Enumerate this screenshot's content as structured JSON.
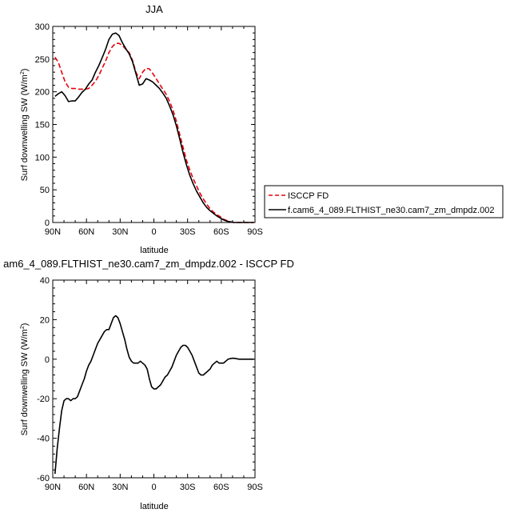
{
  "chart_data": [
    {
      "type": "line",
      "title": "JJA",
      "xlabel": "latitude",
      "ylabel": "Surf downwelling SW (W/m²)",
      "ylabel_parts": {
        "main": "Surf downwelling SW (W/m",
        "sup": "2",
        "end": ")"
      },
      "xlim": [
        90,
        -90
      ],
      "ylim": [
        0,
        300
      ],
      "x_ticks": [
        90,
        60,
        30,
        0,
        -30,
        -60,
        -90
      ],
      "x_tick_labels": [
        "90N",
        "60N",
        "30N",
        "0",
        "30S",
        "60S",
        "90S"
      ],
      "y_ticks": [
        0,
        50,
        100,
        150,
        200,
        250,
        300
      ],
      "y_tick_labels": [
        "0",
        "50",
        "100",
        "150",
        "200",
        "250",
        "300"
      ],
      "legend": "right",
      "series": [
        {
          "name": "ISCCP FD",
          "color": "#e8000b",
          "dash": "dashed",
          "x": [
            88,
            85,
            82,
            79,
            76,
            73,
            70,
            67,
            64,
            61,
            58,
            55,
            52,
            49,
            46,
            43,
            40,
            37,
            34,
            31,
            28,
            25,
            22,
            19,
            16,
            13,
            10,
            7,
            4,
            1,
            -2,
            -5,
            -8,
            -11,
            -14,
            -17,
            -20,
            -23,
            -26,
            -29,
            -32,
            -35,
            -38,
            -41,
            -44,
            -47,
            -50,
            -53,
            -56,
            -59,
            -62,
            -65,
            -68,
            -71,
            -74,
            -77,
            -80,
            -83,
            -86,
            -89
          ],
          "y": [
            253,
            245,
            230,
            215,
            207,
            205,
            205,
            204,
            204,
            204,
            205,
            210,
            216,
            225,
            236,
            247,
            260,
            269,
            274,
            274,
            271,
            265,
            260,
            248,
            230,
            220,
            230,
            236,
            235,
            228,
            220,
            212,
            204,
            196,
            185,
            172,
            155,
            135,
            115,
            95,
            80,
            67,
            56,
            45,
            36,
            28,
            21,
            16,
            12,
            9,
            5,
            3,
            1,
            0,
            0,
            0,
            0,
            0,
            0,
            0
          ]
        },
        {
          "name": "f.cam6_4_089.FLTHIST_ne30.cam7_zm_dmpdz.002",
          "color": "#000000",
          "dash": "solid",
          "x": [
            88,
            85,
            82,
            79,
            76,
            73,
            70,
            67,
            64,
            61,
            58,
            55,
            52,
            49,
            46,
            43,
            40,
            37,
            34,
            31,
            28,
            25,
            22,
            19,
            16,
            13,
            10,
            7,
            4,
            1,
            -2,
            -5,
            -8,
            -11,
            -14,
            -17,
            -20,
            -23,
            -26,
            -29,
            -32,
            -35,
            -38,
            -41,
            -44,
            -47,
            -50,
            -53,
            -56,
            -59,
            -62,
            -65,
            -68,
            -71,
            -74,
            -77,
            -80,
            -83,
            -86,
            -89
          ],
          "y": [
            193,
            197,
            200,
            194,
            185,
            186,
            186,
            192,
            199,
            204,
            212,
            218,
            230,
            240,
            252,
            265,
            280,
            288,
            290,
            286,
            275,
            266,
            258,
            246,
            228,
            210,
            212,
            220,
            218,
            215,
            210,
            205,
            198,
            190,
            178,
            165,
            148,
            128,
            107,
            88,
            72,
            59,
            48,
            39,
            30,
            23,
            18,
            14,
            10,
            7,
            4,
            2,
            1,
            0,
            0,
            0,
            0,
            0,
            0,
            0
          ]
        }
      ]
    },
    {
      "type": "line",
      "title": "am6_4_089.FLTHIST_ne30.cam7_zm_dmpdz.002 - ISCCP FD",
      "xlabel": "latitude",
      "ylabel": "Surf downwelling SW (W/m²)",
      "ylabel_parts": {
        "main": "Surf downwelling SW (W/m",
        "sup": "2",
        "end": ")"
      },
      "xlim": [
        90,
        -90
      ],
      "ylim": [
        -60,
        40
      ],
      "x_ticks": [
        90,
        60,
        30,
        0,
        -30,
        -60,
        -90
      ],
      "x_tick_labels": [
        "90N",
        "60N",
        "30N",
        "0",
        "30S",
        "60S",
        "90S"
      ],
      "y_ticks": [
        -60,
        -40,
        -20,
        0,
        20,
        40
      ],
      "y_tick_labels": [
        "-60",
        "-40",
        "-20",
        "0",
        "20",
        "40"
      ],
      "series": [
        {
          "color": "#000000",
          "dash": "solid",
          "x": [
            88,
            86,
            84,
            82,
            80,
            78,
            76,
            74,
            72,
            70,
            68,
            66,
            64,
            62,
            60,
            58,
            56,
            54,
            52,
            50,
            48,
            46,
            44,
            42,
            40,
            38,
            36,
            34,
            32,
            30,
            28,
            26,
            24,
            22,
            20,
            18,
            16,
            14,
            12,
            10,
            8,
            6,
            4,
            2,
            0,
            -2,
            -4,
            -6,
            -8,
            -10,
            -12,
            -14,
            -16,
            -18,
            -20,
            -22,
            -24,
            -26,
            -28,
            -30,
            -32,
            -34,
            -36,
            -38,
            -40,
            -42,
            -44,
            -46,
            -48,
            -50,
            -52,
            -54,
            -56,
            -58,
            -60,
            -62,
            -64,
            -66,
            -68,
            -70,
            -72,
            -74,
            -76,
            -78,
            -80,
            -82,
            -84,
            -86,
            -88,
            -89
          ],
          "y": [
            -58,
            -45,
            -35,
            -26,
            -21,
            -20,
            -20,
            -21,
            -20,
            -20,
            -19,
            -16,
            -13,
            -10,
            -6,
            -3,
            -1,
            2,
            5,
            8,
            10,
            12,
            14,
            15,
            15,
            18,
            21,
            22,
            21,
            18,
            14,
            10,
            5,
            1,
            -1,
            -2,
            -2,
            -2,
            -1,
            -2,
            -3,
            -5,
            -10,
            -14,
            -15,
            -15,
            -14,
            -13,
            -11,
            -9,
            -8,
            -6,
            -4,
            -1,
            2,
            4,
            6,
            7,
            7,
            6,
            4,
            2,
            -1,
            -4,
            -7,
            -8,
            -8,
            -7,
            -6,
            -5,
            -3,
            -2,
            -1,
            -2,
            -2,
            -2,
            -1,
            0,
            0.3,
            0.5,
            0.4,
            0.2,
            0,
            0,
            0,
            0,
            0,
            0,
            0,
            0
          ]
        }
      ]
    }
  ]
}
